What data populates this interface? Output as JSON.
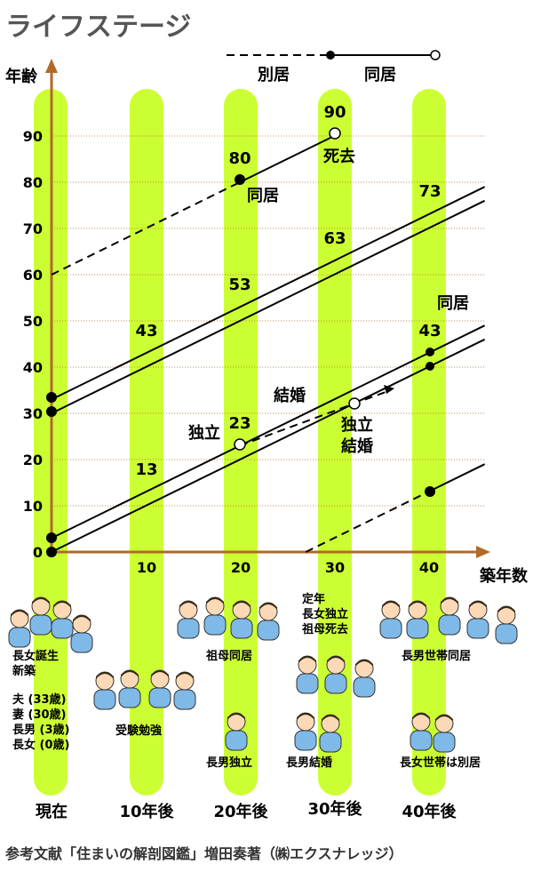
{
  "title": "ライフステージ",
  "legend": {
    "separate_label": "別居",
    "together_label": "同居"
  },
  "y_axis_label": "年齢",
  "x_axis_label": "築年数",
  "colors": {
    "column": "#CCFF33",
    "axis": "#B06A2A",
    "grid": "#B06A2A",
    "title": "#555555",
    "line": "#000000"
  },
  "chart_data": {
    "type": "line",
    "xlim": [
      0,
      40
    ],
    "ylim": [
      0,
      90
    ],
    "x_ticks": [
      "10",
      "20",
      "30",
      "40"
    ],
    "y_ticks": [
      "0",
      "10",
      "20",
      "30",
      "40",
      "50",
      "60",
      "70",
      "80",
      "90"
    ],
    "series": [
      {
        "points": [
          [
            0,
            33
          ],
          [
            46,
            79
          ]
        ],
        "style": "solid"
      },
      {
        "points": [
          [
            0,
            30
          ],
          [
            46,
            76
          ]
        ],
        "style": "solid"
      },
      {
        "points": [
          [
            0,
            3
          ],
          [
            40,
            43
          ],
          [
            46,
            49
          ]
        ],
        "style": "solid"
      },
      {
        "points": [
          [
            0,
            0
          ],
          [
            31.5,
            31.5
          ]
        ],
        "style": "solid"
      },
      {
        "points": [
          [
            0,
            60
          ],
          [
            20,
            80
          ]
        ],
        "style": "dashed"
      },
      {
        "points": [
          [
            20,
            80
          ],
          [
            30,
            90
          ]
        ],
        "style": "solid"
      },
      {
        "points": [
          [
            20,
            23
          ],
          [
            36,
            35
          ]
        ],
        "style": "dashed"
      },
      {
        "points": [
          [
            31.5,
            31.5
          ],
          [
            40,
            40
          ],
          [
            46,
            46
          ]
        ],
        "style": "solid"
      },
      {
        "points": [
          [
            27,
            0
          ],
          [
            40,
            13
          ]
        ],
        "style": "dashed"
      },
      {
        "points": [
          [
            40,
            13
          ],
          [
            46,
            19
          ]
        ],
        "style": "solid"
      }
    ]
  },
  "annotations": {
    "n90": "90",
    "n80": "80",
    "n73": "73",
    "n63": "63",
    "n53": "53",
    "n43a": "43",
    "n43b": "43",
    "n23": "23",
    "n13": "13",
    "dohkyo1": "同居",
    "shikyo": "死去",
    "dohkyo2": "同居",
    "kekkon": "結婚",
    "dokuritsu": "独立",
    "dokuritsu2": "独立",
    "kekkon2": "結婚"
  },
  "events": {
    "now_a": "長女誕生",
    "now_b": "新築",
    "members": [
      "夫 (33歳)",
      "妻 (30歳)",
      "長男 (3歳)",
      "長女 (0歳)"
    ],
    "y10": "受験勉強",
    "y20_a": "祖母同居",
    "y20_b": "長男独立",
    "y30_a": "定年",
    "y30_b": "長女独立",
    "y30_c": "祖母死去",
    "y30_d": "長男結婚",
    "y40_a": "長男世帯同居",
    "y40_b": "長女世帯は別居"
  },
  "periods": [
    "現在",
    "10年後",
    "20年後",
    "30年後",
    "40年後"
  ],
  "footer": "参考文献「住まいの解剖図鑑」増田奏著（㈱エクスナレッジ）"
}
